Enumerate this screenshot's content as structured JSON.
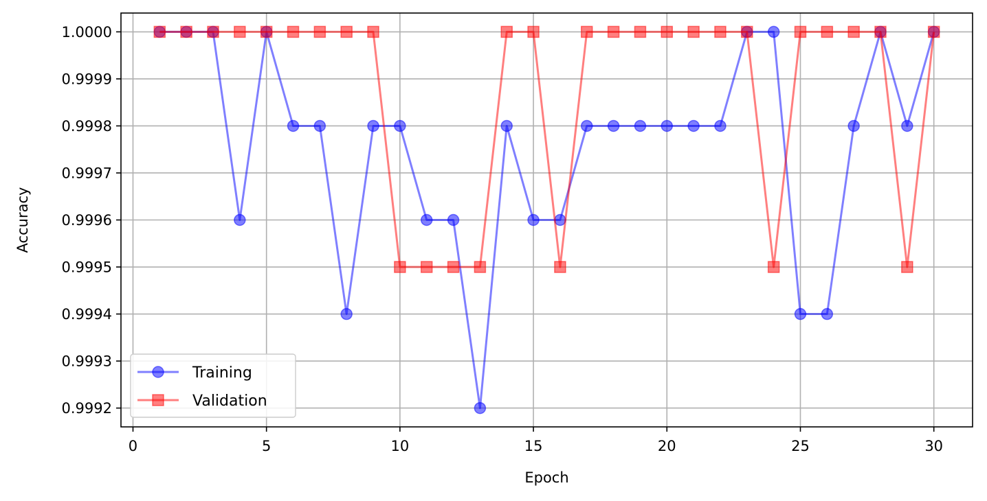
{
  "chart_data": {
    "type": "line",
    "title": "",
    "xlabel": "Epoch",
    "ylabel": "Accuracy",
    "xlim": [
      -0.45,
      31.45
    ],
    "ylim": [
      0.99916,
      1.00004
    ],
    "xticks": [
      0,
      5,
      10,
      15,
      20,
      25,
      30
    ],
    "yticks": [
      0.9992,
      0.9993,
      0.9994,
      0.9995,
      0.9996,
      0.9997,
      0.9998,
      0.9999,
      1.0
    ],
    "ytick_labels": [
      "0.9992",
      "0.9993",
      "0.9994",
      "0.9995",
      "0.9996",
      "0.9997",
      "0.9998",
      "0.9999",
      "1.0000"
    ],
    "grid": true,
    "legend_position": "bottom-left",
    "x": [
      1,
      2,
      3,
      4,
      5,
      6,
      7,
      8,
      9,
      10,
      11,
      12,
      13,
      14,
      15,
      16,
      17,
      18,
      19,
      20,
      21,
      22,
      23,
      24,
      25,
      26,
      27,
      28,
      29,
      30
    ],
    "series": [
      {
        "name": "Training",
        "color": "#0000ff",
        "marker": "circle",
        "values": [
          1.0,
          1.0,
          1.0,
          0.9996,
          1.0,
          0.9998,
          0.9998,
          0.9994,
          0.9998,
          0.9998,
          0.9996,
          0.9996,
          0.9992,
          0.9998,
          0.9996,
          0.9996,
          0.9998,
          0.9998,
          0.9998,
          0.9998,
          0.9998,
          0.9998,
          1.0,
          1.0,
          0.9994,
          0.9994,
          0.9998,
          1.0,
          0.9998,
          1.0
        ]
      },
      {
        "name": "Validation",
        "color": "#ff0000",
        "marker": "square",
        "values": [
          1.0,
          1.0,
          1.0,
          1.0,
          1.0,
          1.0,
          1.0,
          1.0,
          1.0,
          0.9995,
          0.9995,
          0.9995,
          0.9995,
          1.0,
          1.0,
          0.9995,
          1.0,
          1.0,
          1.0,
          1.0,
          1.0,
          1.0,
          1.0,
          0.9995,
          1.0,
          1.0,
          1.0,
          1.0,
          0.9995,
          1.0
        ]
      }
    ]
  }
}
